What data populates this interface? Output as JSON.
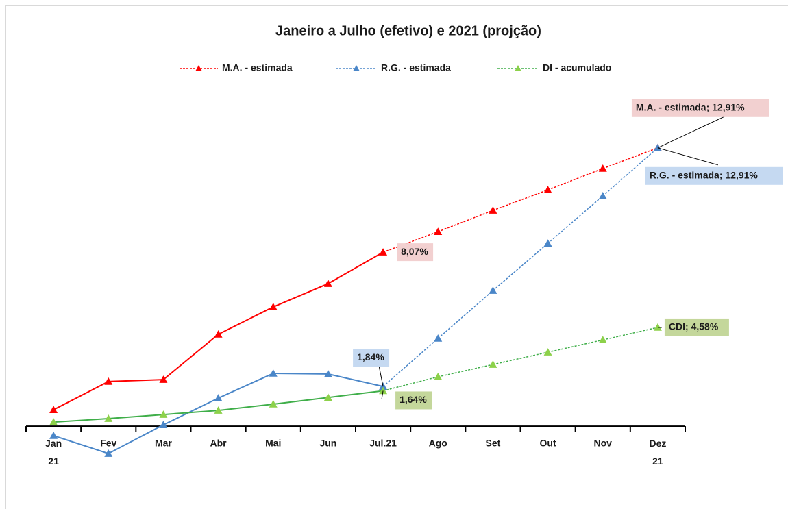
{
  "chart_data": {
    "type": "line",
    "title": "Janeiro a Julho (efetivo) e 2021 (projção)",
    "categories": [
      "Jan\n21",
      "Fev",
      "Mar",
      "Abr",
      "Mai",
      "Jun",
      "Jul.21",
      "Ago",
      "Set",
      "Out",
      "Nov",
      "Dez\n21"
    ],
    "dashed_from_category": "Jul.21",
    "ylim": [
      -2,
      14
    ],
    "legend": "top",
    "series": [
      {
        "name": "M.A. - estimada",
        "color": "#ff0000",
        "label_color": "#f2d0d0",
        "values": [
          0.76,
          2.07,
          2.16,
          4.26,
          5.53,
          6.61,
          8.07,
          9.02,
          10.01,
          10.96,
          11.95,
          12.91
        ],
        "value_labels": [
          null,
          null,
          null,
          null,
          null,
          null,
          "8,07%",
          null,
          null,
          null,
          null,
          "M.A. - estimada; 12,91%"
        ]
      },
      {
        "name": "R.G. - estimada",
        "color": "#4a86c8",
        "label_color": "#c5d9f1",
        "values": [
          -0.44,
          -1.27,
          0.06,
          1.3,
          2.45,
          2.42,
          1.84,
          4.07,
          6.29,
          8.48,
          10.68,
          12.91
        ],
        "value_labels": [
          null,
          null,
          null,
          null,
          null,
          null,
          "1,84%",
          null,
          null,
          null,
          null,
          "R.G. - estimada; 12,91%"
        ]
      },
      {
        "name": "DI - acumulado",
        "color": "#8dd14a",
        "line_color": "#3fae49",
        "label_color": "#c4d79b",
        "values": [
          0.19,
          0.35,
          0.54,
          0.73,
          1.02,
          1.33,
          1.64,
          2.29,
          2.86,
          3.43,
          4.0,
          4.58
        ],
        "value_labels": [
          null,
          null,
          null,
          null,
          null,
          null,
          "1,64%",
          null,
          null,
          null,
          null,
          "CDI; 4,58%"
        ]
      }
    ]
  }
}
